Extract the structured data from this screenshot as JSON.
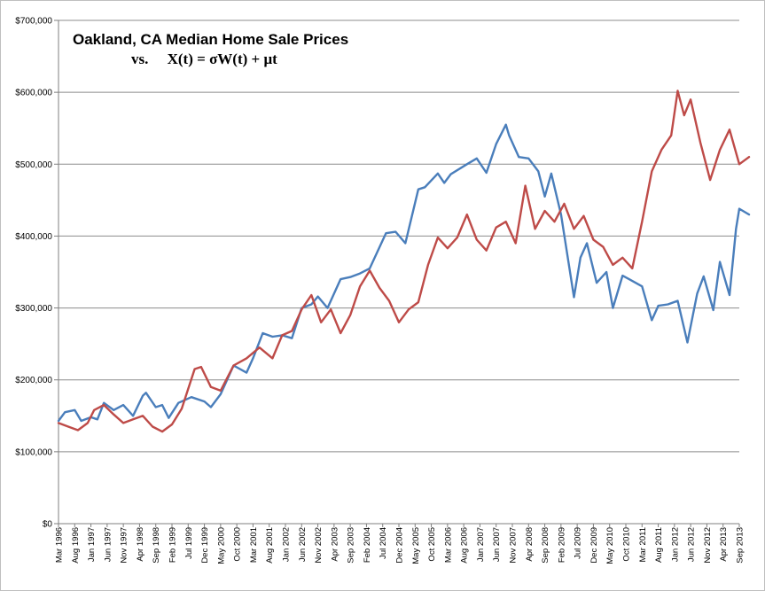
{
  "chart_data": {
    "type": "line",
    "title": "Oakland, CA Median Home Sale Prices",
    "subtitle": "vs.     X(t) = σW(t) + μt",
    "xlabel": "",
    "ylabel": "",
    "ylim": [
      0,
      700000
    ],
    "y_ticks": [
      0,
      100000,
      200000,
      300000,
      400000,
      500000,
      600000,
      700000
    ],
    "y_tick_labels": [
      "$0",
      "$100,000",
      "$200,000",
      "$300,000",
      "$400,000",
      "$500,000",
      "$600,000",
      "$700,000"
    ],
    "x_range": [
      "1996-03",
      "2013-09"
    ],
    "x_tick_labels": [
      "Mar 1996",
      "Aug 1996",
      "Jan 1997",
      "Jun 1997",
      "Nov 1997",
      "Apr 1998",
      "Sep 1998",
      "Feb 1999",
      "Jul 1999",
      "Dec 1999",
      "May 2000",
      "Oct 2000",
      "Mar 2001",
      "Aug 2001",
      "Jan 2002",
      "Jun 2002",
      "Nov 2002",
      "Apr 2003",
      "Sep 2003",
      "Feb 2004",
      "Jul 2004",
      "Dec 2004",
      "May 2005",
      "Oct 2005",
      "Mar 2006",
      "Aug 2006",
      "Jan 2007",
      "Jun 2007",
      "Nov 2007",
      "Apr 2008",
      "Sep 2008",
      "Feb 2009",
      "Jul 2009",
      "Dec 2009",
      "May 2010",
      "Oct 2010",
      "Mar 2011",
      "Aug 2011",
      "Jan 2012",
      "Jun 2012",
      "Nov 2012",
      "Apr 2013",
      "Sep 2013"
    ],
    "grid": "horizontal",
    "colors": {
      "blue": "#4a7ebb",
      "red": "#be4b48"
    },
    "series": [
      {
        "color": "#4a7ebb",
        "points": [
          [
            "1996-03",
            143000
          ],
          [
            "1996-05",
            155000
          ],
          [
            "1996-08",
            158000
          ],
          [
            "1996-10",
            143000
          ],
          [
            "1997-01",
            148000
          ],
          [
            "1997-03",
            145000
          ],
          [
            "1997-05",
            168000
          ],
          [
            "1997-08",
            158000
          ],
          [
            "1997-11",
            165000
          ],
          [
            "1998-02",
            150000
          ],
          [
            "1998-05",
            178000
          ],
          [
            "1998-06",
            182000
          ],
          [
            "1998-09",
            162000
          ],
          [
            "1998-11",
            165000
          ],
          [
            "1999-01",
            147000
          ],
          [
            "1999-04",
            168000
          ],
          [
            "1999-08",
            176000
          ],
          [
            "1999-12",
            170000
          ],
          [
            "2000-02",
            162000
          ],
          [
            "2000-05",
            180000
          ],
          [
            "2000-09",
            220000
          ],
          [
            "2001-01",
            210000
          ],
          [
            "2001-03",
            230000
          ],
          [
            "2001-06",
            265000
          ],
          [
            "2001-09",
            260000
          ],
          [
            "2001-12",
            262000
          ],
          [
            "2002-03",
            258000
          ],
          [
            "2002-06",
            300000
          ],
          [
            "2002-09",
            305000
          ],
          [
            "2002-11",
            316000
          ],
          [
            "2003-02",
            300000
          ],
          [
            "2003-06",
            340000
          ],
          [
            "2003-09",
            343000
          ],
          [
            "2003-12",
            348000
          ],
          [
            "2004-03",
            355000
          ],
          [
            "2004-08",
            404000
          ],
          [
            "2004-11",
            406000
          ],
          [
            "2005-02",
            390000
          ],
          [
            "2005-06",
            465000
          ],
          [
            "2005-08",
            468000
          ],
          [
            "2005-12",
            487000
          ],
          [
            "2006-02",
            474000
          ],
          [
            "2006-04",
            486000
          ],
          [
            "2006-09",
            500000
          ],
          [
            "2006-12",
            508000
          ],
          [
            "2007-03",
            488000
          ],
          [
            "2007-06",
            528000
          ],
          [
            "2007-09",
            555000
          ],
          [
            "2007-10",
            540000
          ],
          [
            "2008-01",
            510000
          ],
          [
            "2008-04",
            508000
          ],
          [
            "2008-07",
            490000
          ],
          [
            "2008-09",
            455000
          ],
          [
            "2008-11",
            487000
          ],
          [
            "2009-02",
            430000
          ],
          [
            "2009-06",
            315000
          ],
          [
            "2009-08",
            370000
          ],
          [
            "2009-10",
            390000
          ],
          [
            "2010-01",
            335000
          ],
          [
            "2010-04",
            350000
          ],
          [
            "2010-06",
            300000
          ],
          [
            "2010-09",
            345000
          ],
          [
            "2010-11",
            340000
          ],
          [
            "2011-03",
            330000
          ],
          [
            "2011-06",
            283000
          ],
          [
            "2011-08",
            303000
          ],
          [
            "2011-11",
            305000
          ],
          [
            "2012-02",
            310000
          ],
          [
            "2012-05",
            252000
          ],
          [
            "2012-08",
            320000
          ],
          [
            "2012-10",
            344000
          ],
          [
            "2013-01",
            297000
          ],
          [
            "2013-03",
            364000
          ],
          [
            "2013-06",
            318000
          ],
          [
            "2013-08",
            410000
          ],
          [
            "2013-09",
            438000
          ],
          [
            "2013-12",
            430000
          ]
        ]
      },
      {
        "color": "#be4b48",
        "points": [
          [
            "1996-03",
            140000
          ],
          [
            "1996-06",
            135000
          ],
          [
            "1996-09",
            130000
          ],
          [
            "1996-12",
            140000
          ],
          [
            "1997-02",
            158000
          ],
          [
            "1997-05",
            165000
          ],
          [
            "1997-08",
            152000
          ],
          [
            "1997-11",
            140000
          ],
          [
            "1998-02",
            145000
          ],
          [
            "1998-05",
            150000
          ],
          [
            "1998-08",
            135000
          ],
          [
            "1998-11",
            128000
          ],
          [
            "1999-02",
            138000
          ],
          [
            "1999-05",
            160000
          ],
          [
            "1999-09",
            215000
          ],
          [
            "1999-11",
            218000
          ],
          [
            "2000-02",
            190000
          ],
          [
            "2000-05",
            185000
          ],
          [
            "2000-09",
            220000
          ],
          [
            "2001-01",
            230000
          ],
          [
            "2001-05",
            245000
          ],
          [
            "2001-09",
            230000
          ],
          [
            "2001-12",
            262000
          ],
          [
            "2002-03",
            268000
          ],
          [
            "2002-06",
            298000
          ],
          [
            "2002-09",
            318000
          ],
          [
            "2002-12",
            280000
          ],
          [
            "2003-03",
            298000
          ],
          [
            "2003-06",
            265000
          ],
          [
            "2003-09",
            290000
          ],
          [
            "2003-12",
            330000
          ],
          [
            "2004-03",
            352000
          ],
          [
            "2004-06",
            328000
          ],
          [
            "2004-09",
            310000
          ],
          [
            "2004-12",
            280000
          ],
          [
            "2005-03",
            298000
          ],
          [
            "2005-06",
            308000
          ],
          [
            "2005-09",
            360000
          ],
          [
            "2005-12",
            398000
          ],
          [
            "2006-03",
            383000
          ],
          [
            "2006-06",
            398000
          ],
          [
            "2006-09",
            430000
          ],
          [
            "2006-12",
            395000
          ],
          [
            "2007-03",
            380000
          ],
          [
            "2007-06",
            412000
          ],
          [
            "2007-09",
            420000
          ],
          [
            "2007-12",
            390000
          ],
          [
            "2008-03",
            470000
          ],
          [
            "2008-06",
            410000
          ],
          [
            "2008-09",
            435000
          ],
          [
            "2008-12",
            420000
          ],
          [
            "2009-03",
            445000
          ],
          [
            "2009-06",
            410000
          ],
          [
            "2009-09",
            428000
          ],
          [
            "2009-12",
            395000
          ],
          [
            "2010-03",
            385000
          ],
          [
            "2010-06",
            360000
          ],
          [
            "2010-09",
            370000
          ],
          [
            "2010-12",
            355000
          ],
          [
            "2011-03",
            420000
          ],
          [
            "2011-06",
            490000
          ],
          [
            "2011-09",
            520000
          ],
          [
            "2011-12",
            540000
          ],
          [
            "2012-02",
            602000
          ],
          [
            "2012-04",
            568000
          ],
          [
            "2012-06",
            590000
          ],
          [
            "2012-09",
            530000
          ],
          [
            "2012-12",
            478000
          ],
          [
            "2013-03",
            520000
          ],
          [
            "2013-06",
            548000
          ],
          [
            "2013-09",
            500000
          ],
          [
            "2013-12",
            510000
          ]
        ]
      }
    ]
  }
}
